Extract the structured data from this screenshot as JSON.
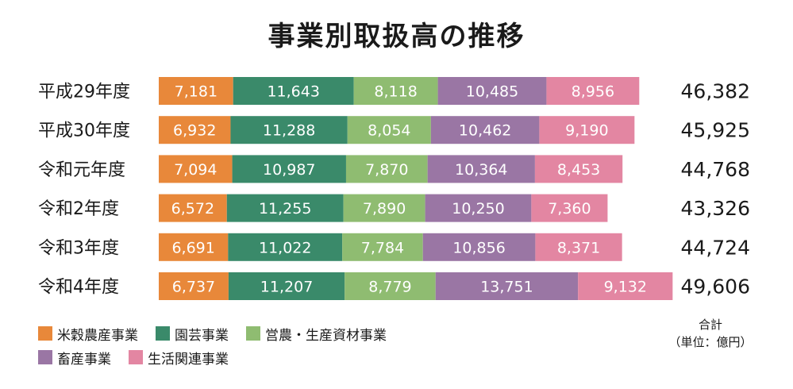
{
  "chart_data": {
    "type": "bar",
    "orientation": "horizontal",
    "stacked": true,
    "title": "事業別取扱高の推移",
    "categories": [
      "平成29年度",
      "平成30年度",
      "令和元年度",
      "令和2年度",
      "令和3年度",
      "令和4年度"
    ],
    "series": [
      {
        "name": "米穀農産事業",
        "color": "#E8883A",
        "values": [
          7181,
          6932,
          7094,
          6572,
          6691,
          6737
        ]
      },
      {
        "name": "園芸事業",
        "color": "#3A8A6A",
        "values": [
          11643,
          11288,
          10987,
          11255,
          11022,
          11207
        ]
      },
      {
        "name": "営農・生産資材事業",
        "color": "#8FBC71",
        "values": [
          8118,
          8054,
          7870,
          7890,
          7784,
          8779
        ]
      },
      {
        "name": "畜産事業",
        "color": "#9A76A4",
        "values": [
          10485,
          10462,
          10364,
          10250,
          10856,
          13751
        ]
      },
      {
        "name": "生活関連事業",
        "color": "#E386A2",
        "values": [
          8956,
          9190,
          8453,
          7360,
          8371,
          9132
        ]
      }
    ],
    "totals": [
      "46,382",
      "45,925",
      "44,768",
      "43,326",
      "44,724",
      "49,606"
    ],
    "total_label": "合計",
    "unit_label": "（単位：億円）",
    "legend_position": "bottom-left",
    "grid": false
  }
}
